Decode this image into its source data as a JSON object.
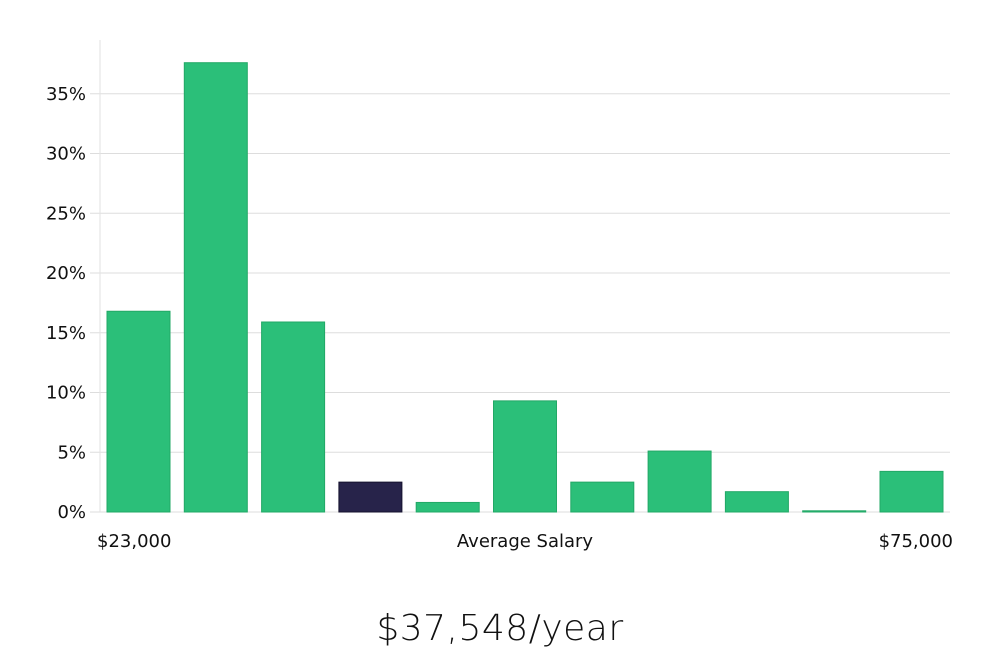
{
  "salary_headline": "$37,548/year",
  "chart_data": {
    "type": "bar",
    "x_start_label": "$23,000",
    "x_center_label": "Average Salary",
    "x_end_label": "$75,000",
    "values": [
      16.8,
      37.6,
      15.9,
      2.5,
      0.8,
      9.3,
      2.5,
      5.1,
      1.7,
      0.1,
      3.4
    ],
    "highlight_index": 3,
    "ylim": [
      0,
      39.5
    ],
    "yticks": [
      0,
      5,
      10,
      15,
      20,
      25,
      30,
      35
    ],
    "ytick_labels": [
      "0%",
      "5%",
      "10%",
      "15%",
      "20%",
      "25%",
      "30%",
      "35%"
    ],
    "grid": true,
    "colors": {
      "bar": "#2bbf79",
      "bar_edge": "#22a866",
      "highlight": "#27234a",
      "highlight_edge": "#15122e"
    }
  }
}
